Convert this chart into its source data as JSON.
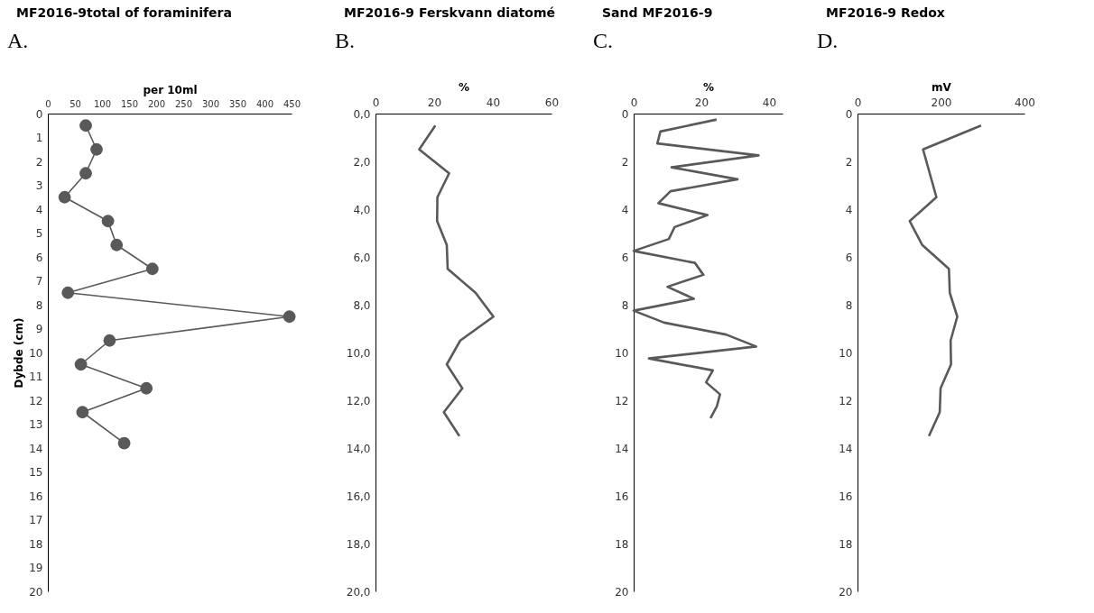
{
  "chart_data": [
    {
      "type": "line",
      "title": "MF2016-9total of foraminifera",
      "annotations": [
        "A."
      ],
      "xlabel": "per 10ml",
      "ylabel": "Dybde (cm)",
      "marker": "circle",
      "grid": false,
      "xlim": [
        0,
        450
      ],
      "xticks": [
        0,
        50,
        100,
        150,
        200,
        250,
        300,
        350,
        400,
        450
      ],
      "ylim": [
        20,
        0
      ],
      "yticks": [
        0,
        1,
        2,
        3,
        4,
        5,
        6,
        7,
        8,
        9,
        10,
        11,
        12,
        13,
        14,
        15,
        16,
        17,
        18,
        19,
        20
      ],
      "series": [
        {
          "color": "#595959",
          "x": [
            70,
            90,
            70,
            31,
            111,
            127,
            193,
            37,
            446,
            114,
            61,
            182,
            64,
            141
          ],
          "values": [
            0.5,
            1.5,
            2.5,
            3.5,
            4.5,
            5.5,
            6.5,
            7.5,
            8.5,
            9.5,
            10.5,
            11.5,
            12.5,
            13.8
          ]
        }
      ]
    },
    {
      "type": "line",
      "title": "MF2016-9 Ferskvann diatomé",
      "annotations": [
        "B."
      ],
      "xlabel": "%",
      "grid": false,
      "xlim": [
        0,
        60
      ],
      "xticks": [
        0,
        20,
        40,
        60
      ],
      "ylim": [
        20,
        0
      ],
      "yticks": [
        {
          "value": 0,
          "label": "0,0"
        },
        {
          "value": 2,
          "label": "2,0"
        },
        {
          "value": 4,
          "label": "4,0"
        },
        {
          "value": 6,
          "label": "6,0"
        },
        {
          "value": 8,
          "label": "8,0"
        },
        {
          "value": 10,
          "label": "10,0"
        },
        {
          "value": 12,
          "label": "12,0"
        },
        {
          "value": 14,
          "label": "14,0"
        },
        {
          "value": 16,
          "label": "16,0"
        },
        {
          "value": 18,
          "label": "18,0"
        },
        {
          "value": 20,
          "label": "20,0"
        }
      ],
      "series": [
        {
          "color": "#595959",
          "x": [
            20.4,
            14.9,
            25.1,
            21.1,
            21.0,
            24.3,
            24.6,
            34.1,
            40.2,
            28.9,
            24.3,
            29.6,
            23.3,
            28.6
          ],
          "values": [
            0.5,
            1.5,
            2.5,
            3.5,
            4.5,
            5.5,
            6.5,
            7.5,
            8.5,
            9.5,
            10.5,
            11.5,
            12.5,
            13.5
          ]
        }
      ]
    },
    {
      "type": "line",
      "title": "Sand MF2016-9",
      "annotations": [
        "C."
      ],
      "xlabel": "%",
      "grid": false,
      "xlim": [
        0,
        44
      ],
      "xticks": [
        0,
        20,
        40
      ],
      "ylim": [
        20,
        0
      ],
      "yticks": [
        0,
        2,
        4,
        6,
        8,
        10,
        12,
        14,
        16,
        18,
        20
      ],
      "series": [
        {
          "color": "#595959",
          "x": [
            24.5,
            7.9,
            7.0,
            36.9,
            11.2,
            30.7,
            10.9,
            7.3,
            21.8,
            12.1,
            10.4,
            0,
            18.1,
            20.6,
            10.0,
            17.8,
            0,
            9.0,
            27.3,
            36.2,
            4.5,
            23.4,
            21.4,
            25.5,
            24.6,
            22.7
          ],
          "values": [
            0.25,
            0.75,
            1.25,
            1.75,
            2.25,
            2.75,
            3.25,
            3.75,
            4.25,
            4.75,
            5.25,
            5.75,
            6.25,
            6.75,
            7.25,
            7.75,
            8.25,
            8.75,
            9.25,
            9.75,
            10.25,
            10.75,
            11.25,
            11.75,
            12.25,
            12.75
          ]
        }
      ]
    },
    {
      "type": "line",
      "title": "MF2016-9 Redox",
      "annotations": [
        "D."
      ],
      "xlabel": "mV",
      "grid": false,
      "xlim": [
        0,
        400
      ],
      "xticks": [
        0,
        200,
        400
      ],
      "ylim": [
        20,
        0
      ],
      "yticks": [
        0,
        2,
        4,
        6,
        8,
        10,
        12,
        14,
        16,
        18,
        20
      ],
      "series": [
        {
          "color": "#595959",
          "x": [
            296,
            157,
            189,
            125,
            155,
            219,
            221,
            239,
            223,
            224,
            199,
            197,
            171
          ],
          "values": [
            0.5,
            1.5,
            3.5,
            4.5,
            5.5,
            6.5,
            7.5,
            8.5,
            9.5,
            10.5,
            11.5,
            12.5,
            13.5
          ]
        }
      ]
    }
  ]
}
